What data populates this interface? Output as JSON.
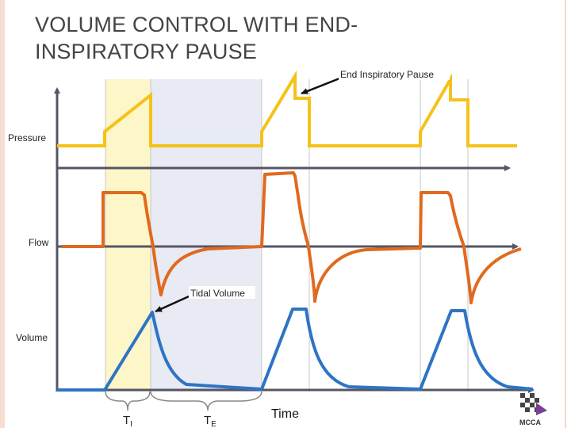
{
  "title": "VOLUME CONTROL WITH END-INSPIRATORY PAUSE",
  "labels": {
    "end_pause": "End Inspiratory Pause",
    "pressure": "Pressure",
    "flow": "Flow",
    "tidal_volume": "Tidal Volume",
    "volume": "Volume",
    "ti": "T",
    "ti_sub": "I",
    "te": "T",
    "te_sub": "E",
    "time": "Time"
  },
  "logo": {
    "text": "MCCA"
  },
  "colors": {
    "pressure": "#f5c218",
    "flow": "#e06a1e",
    "volume": "#2e74c4",
    "axis": "#555566",
    "inspiration_band": "#fdf6c8",
    "expiration_band": "#e8eaf4",
    "grid": "#c8c8c8"
  },
  "icons": [
    "arrow-icon",
    "logo-icon"
  ]
}
